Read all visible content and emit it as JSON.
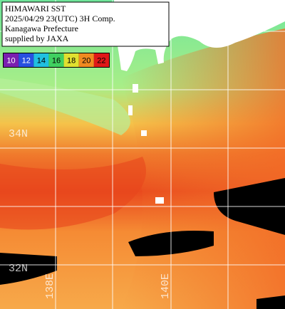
{
  "header": {
    "lines": [
      "HIMAWARI SST",
      "2025/04/29 23(UTC) 3H Comp.",
      "Kanagawa Prefecture",
      "supplied by JAXA"
    ]
  },
  "colorbar": {
    "ticks": [
      10,
      12,
      14,
      16,
      18,
      20,
      22
    ]
  },
  "grid_labels": {
    "lat": [
      "34N",
      "32N"
    ],
    "lon": [
      "138E",
      "140E"
    ]
  }
}
